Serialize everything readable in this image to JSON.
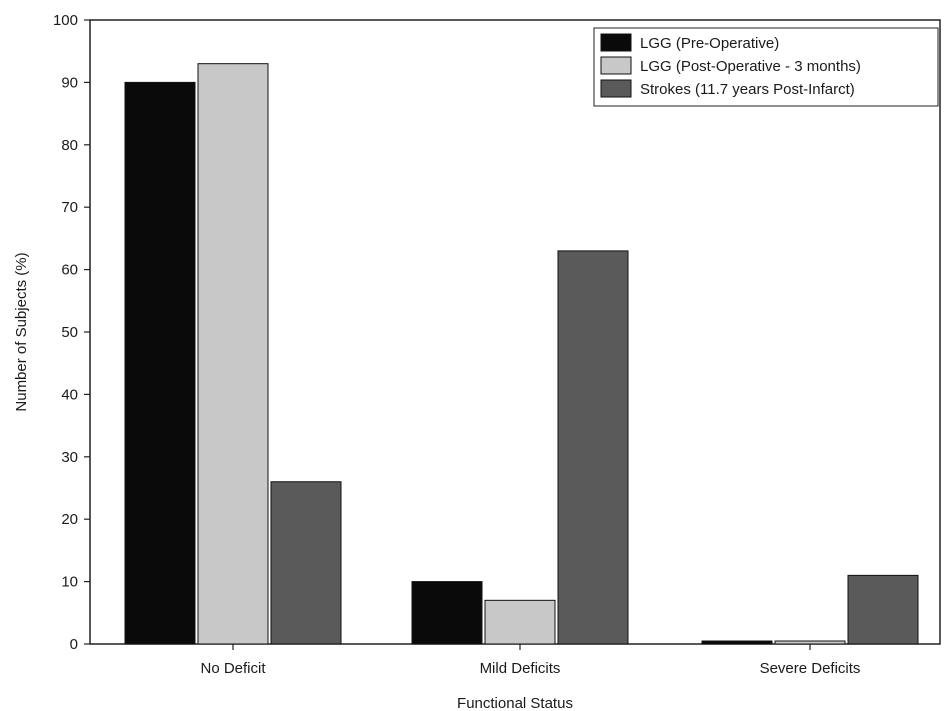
{
  "chart_data": {
    "type": "bar",
    "title": "",
    "xlabel": "Functional Status",
    "ylabel": "Number of Subjects (%)",
    "categories": [
      "No Deficit",
      "Mild Deficits",
      "Severe Deficits"
    ],
    "ylim": [
      0,
      100
    ],
    "yticks": [
      "0",
      "10",
      "20",
      "30",
      "40",
      "50",
      "60",
      "70",
      "80",
      "90",
      "100"
    ],
    "series": [
      {
        "name": "LGG (Pre-Operative)",
        "color": "#0a0a0a",
        "values": [
          90,
          10,
          0
        ]
      },
      {
        "name": "LGG (Post-Operative - 3 months)",
        "color": "#c8c8c8",
        "values": [
          93,
          7,
          0
        ]
      },
      {
        "name": "Strokes (11.7 years Post-Infarct)",
        "color": "#5a5a5a",
        "values": [
          26,
          63,
          11
        ]
      }
    ],
    "legend_position": "top-right",
    "grid": false
  }
}
